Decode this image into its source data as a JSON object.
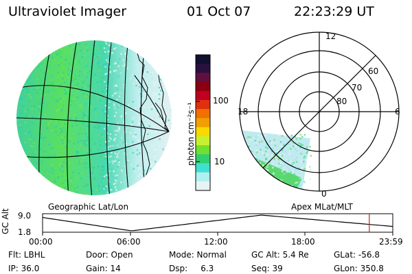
{
  "header": {
    "instrument": "Ultraviolet Imager",
    "date": "01 Oct 07",
    "time": "22:23:29 UT"
  },
  "colorbar": {
    "unit_label": "photon cm⁻²s⁻¹",
    "ticks": [
      "100",
      "10"
    ],
    "colors": [
      "#101030",
      "#2a1040",
      "#601040",
      "#8a0010",
      "#c00020",
      "#e03010",
      "#f07000",
      "#f0a000",
      "#f8d800",
      "#c8f030",
      "#70e030",
      "#30d070",
      "#40e0d0",
      "#b0f0f0",
      "#e8f4f4"
    ]
  },
  "maps": {
    "left_label": "Geographic Lat/Lon",
    "right_label": "Apex  MLat/MLT",
    "polar_labels": {
      "top": "12",
      "left": "18",
      "right": "6",
      "bottom": "0"
    },
    "rings": [
      "60",
      "70",
      "80"
    ]
  },
  "altitude_plot": {
    "ylabel": "GC Alt",
    "yticks": [
      "9.0",
      "1.8"
    ],
    "xticks": [
      "00:00",
      "06:00",
      "12:00",
      "18:00",
      "23:59"
    ],
    "marker_time_hours": 22.39,
    "marker_color": "#c02020"
  },
  "status": {
    "flt": "Flt: LBHL",
    "ip": "IP: 36.0",
    "door": "Door: Open",
    "gain": "Gain: 14",
    "mode": "Mode: Normal",
    "dsp": "Dsp:     6.3",
    "gc_alt": "GC Alt: 5.4 Re",
    "seq": "Seq: 39",
    "glat": "GLat: -56.8",
    "glon": "GLon: 350.8"
  }
}
